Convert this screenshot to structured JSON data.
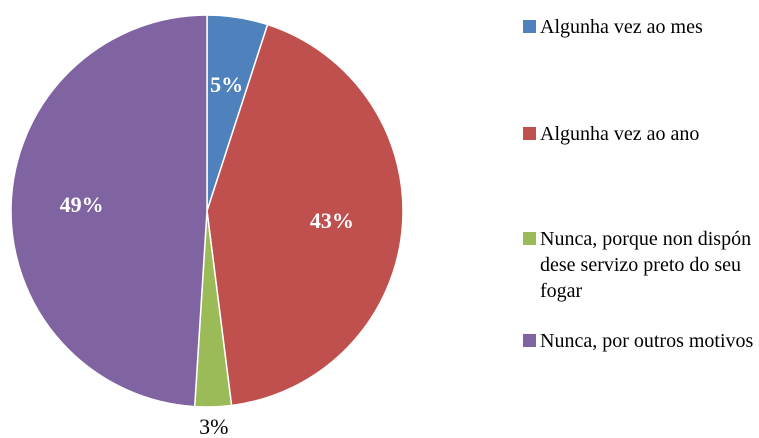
{
  "chart_data": {
    "type": "pie",
    "categories": [
      "Algunha vez ao mes",
      "Algunha vez ao ano",
      "Nunca, porque non dispón dese servizo preto do seu fogar",
      "Nunca, por outros motivos"
    ],
    "values": [
      5,
      43,
      3,
      49
    ],
    "value_labels": [
      "5%",
      "43%",
      "3%",
      "49%"
    ],
    "colors": [
      "#4f81bd",
      "#c0504d",
      "#9bbb59",
      "#8064a2"
    ],
    "legend": "right"
  }
}
